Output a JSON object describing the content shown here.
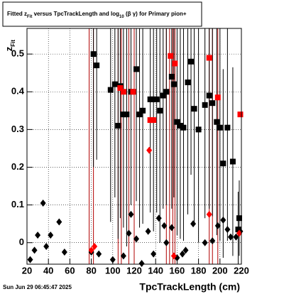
{
  "chart_data": {
    "type": "scatter",
    "title_parts": [
      "Fitted  z",
      "Fit",
      "  versus TpcTrackLength and log",
      "10",
      " (β  γ) for Primary pion+"
    ],
    "y_label_parts": [
      "z",
      "Fit"
    ],
    "x_label": "TpcTrackLength (cm)",
    "timestamp": "Sun Jun 29 06:45:47 2025",
    "xlim": [
      20,
      220
    ],
    "ylim": [
      -0.057,
      0.568
    ],
    "xticks": [
      20,
      40,
      60,
      80,
      100,
      120,
      140,
      160,
      180,
      200,
      220
    ],
    "yticks": [
      0,
      0.1,
      0.2,
      0.3,
      0.4,
      0.5
    ],
    "grid": true,
    "vlines": {
      "color": "#b00000",
      "x": [
        78,
        82,
        105,
        108,
        115,
        120,
        150,
        153,
        156,
        158,
        190,
        193,
        198
      ]
    },
    "series": [
      {
        "marker": "square",
        "color": "#000000",
        "x": [
          82,
          85,
          98,
          102,
          105,
          107,
          110,
          113,
          117,
          122,
          125,
          128,
          135,
          138,
          141,
          144,
          147,
          150,
          155,
          157,
          160,
          163,
          166,
          170,
          173,
          176,
          180,
          186,
          190,
          193,
          197,
          200,
          203,
          207,
          212,
          218,
          217
        ],
        "values": [
          0.5,
          0.47,
          0.405,
          0.42,
          0.31,
          0.415,
          0.34,
          0.34,
          0.4,
          0.46,
          0.34,
          0.35,
          0.38,
          0.38,
          0.38,
          0.35,
          0.39,
          0.4,
          0.44,
          0.42,
          0.32,
          0.31,
          0.305,
          0.425,
          0.48,
          0.355,
          0.3,
          0.365,
          0.39,
          0.37,
          0.32,
          0.305,
          0.21,
          0.305,
          0.215,
          0.065,
          0.035
        ],
        "errors": [
          0.3,
          0.25,
          0.35,
          0.3,
          0.3,
          0.35,
          0.3,
          0.35,
          0.3,
          0.35,
          0.3,
          0.3,
          0.3,
          0.35,
          0.3,
          0.35,
          0.3,
          0.3,
          0.35,
          0.3,
          0.3,
          0.3,
          0.3,
          0.35,
          0.3,
          0.3,
          0.3,
          0.3,
          0.3,
          0.3,
          0.3,
          0.3,
          0.25,
          0.3,
          0.25,
          0.1,
          0.1
        ]
      },
      {
        "marker": "square",
        "color": "#ff0000",
        "x": [
          107,
          110,
          119,
          135,
          138,
          154,
          158,
          190,
          198,
          219
        ],
        "values": [
          0.41,
          0.4,
          0.4,
          0.325,
          0.325,
          0.495,
          0.475,
          0.49,
          0.385,
          0.34
        ]
      },
      {
        "marker": "diamond",
        "color": "#000000",
        "x": [
          23,
          27,
          30,
          35,
          38,
          42,
          50,
          55,
          80,
          87,
          100,
          110,
          115,
          117,
          122,
          127,
          133,
          138,
          143,
          148,
          150,
          155,
          160,
          165,
          168,
          175,
          186,
          193,
          198,
          203,
          207,
          210,
          215,
          219
        ],
        "values": [
          -0.045,
          -0.02,
          0.02,
          0.105,
          -0.01,
          0.02,
          0.055,
          -0.025,
          -0.025,
          -0.03,
          -0.045,
          -0.035,
          0.025,
          0.075,
          0.01,
          -0.055,
          0.03,
          -0.03,
          0.065,
          0.045,
          0.0,
          0.04,
          -0.04,
          -0.03,
          -0.02,
          0.05,
          0.0,
          0.005,
          0.045,
          0.06,
          0.035,
          0.015,
          0.015,
          0.03
        ]
      },
      {
        "marker": "diamond",
        "color": "#ff0000",
        "x": [
          80,
          83,
          134,
          157,
          190,
          218
        ],
        "values": [
          -0.02,
          -0.01,
          0.245,
          -0.035,
          0.075,
          0.025
        ]
      }
    ]
  }
}
